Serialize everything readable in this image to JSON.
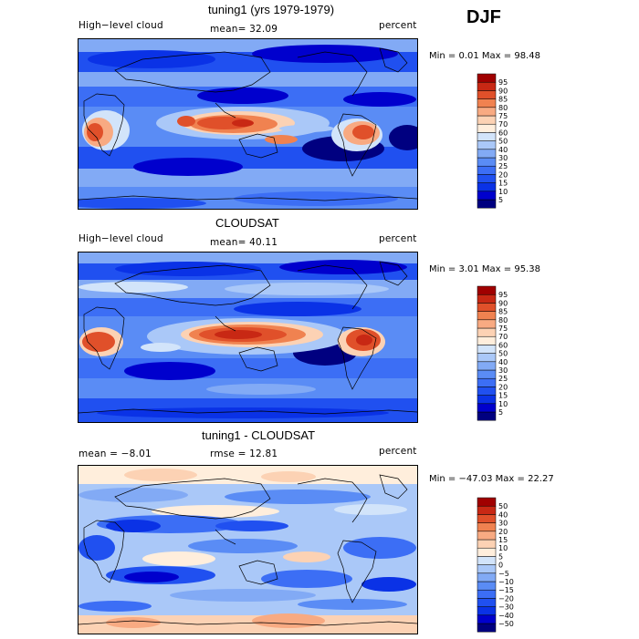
{
  "season": "DJF",
  "panels": [
    {
      "id": "model",
      "title": "tuning1 (yrs 1979-1979)",
      "left_label": "High−level cloud",
      "center_label": "mean=  32.09",
      "right_label": "percent",
      "stats": "Min =    0.01  Max =   98.48",
      "colorbar_id": "abs"
    },
    {
      "id": "obs",
      "title": "CLOUDSAT",
      "left_label": "High−level cloud",
      "center_label": "mean=  40.11",
      "right_label": "percent",
      "stats": "Min =    3.01  Max =   95.38",
      "colorbar_id": "abs"
    },
    {
      "id": "diff",
      "title": "tuning1 - CLOUDSAT",
      "left_label": "mean =   −8.01",
      "center_label": "rmse =   12.81",
      "right_label": "percent",
      "stats": "Min = −47.03  Max =   22.27",
      "colorbar_id": "diff"
    }
  ],
  "colorbars": {
    "abs": {
      "levels": [
        "5",
        "10",
        "15",
        "20",
        "25",
        "30",
        "40",
        "50",
        "60",
        "70",
        "75",
        "80",
        "85",
        "90",
        "95"
      ],
      "colors": [
        "#000080",
        "#0000cd",
        "#0a32e6",
        "#2050f0",
        "#3c6ef5",
        "#5a8cf5",
        "#82aaf5",
        "#aac8f8",
        "#d2e4fa",
        "#ffeedc",
        "#fcd2b4",
        "#f8aa82",
        "#f08250",
        "#e0502a",
        "#c82814",
        "#a00000"
      ]
    },
    "diff": {
      "levels": [
        "−50",
        "−40",
        "−30",
        "−20",
        "−15",
        "−10",
        "−5",
        "0",
        "5",
        "10",
        "15",
        "20",
        "30",
        "40",
        "50"
      ],
      "colors": [
        "#000080",
        "#0000cd",
        "#0a32e6",
        "#2050f0",
        "#3c6ef5",
        "#5a8cf5",
        "#82aaf5",
        "#aac8f8",
        "#d2e4fa",
        "#ffeedc",
        "#fcd2b4",
        "#f8aa82",
        "#f08250",
        "#e0502a",
        "#c82814",
        "#a00000"
      ]
    }
  },
  "chart_data": {
    "type": "heatmap",
    "description_fields": "global lat-lon contour maps of high-level cloud fraction",
    "units": "percent",
    "panels": [
      {
        "name": "tuning1 (yrs 1979-1979)",
        "mean": 32.09,
        "min": 0.01,
        "max": 98.48
      },
      {
        "name": "CLOUDSAT",
        "mean": 40.11,
        "min": 3.01,
        "max": 95.38
      },
      {
        "name": "tuning1 - CLOUDSAT",
        "mean": -8.01,
        "rmse": 12.81,
        "min": -47.03,
        "max": 22.27
      }
    ],
    "contour_levels_abs": [
      5,
      10,
      15,
      20,
      25,
      30,
      40,
      50,
      60,
      70,
      75,
      80,
      85,
      90,
      95
    ],
    "contour_levels_diff": [
      -50,
      -40,
      -30,
      -20,
      -15,
      -10,
      -5,
      0,
      5,
      10,
      15,
      20,
      30,
      40,
      50
    ]
  }
}
